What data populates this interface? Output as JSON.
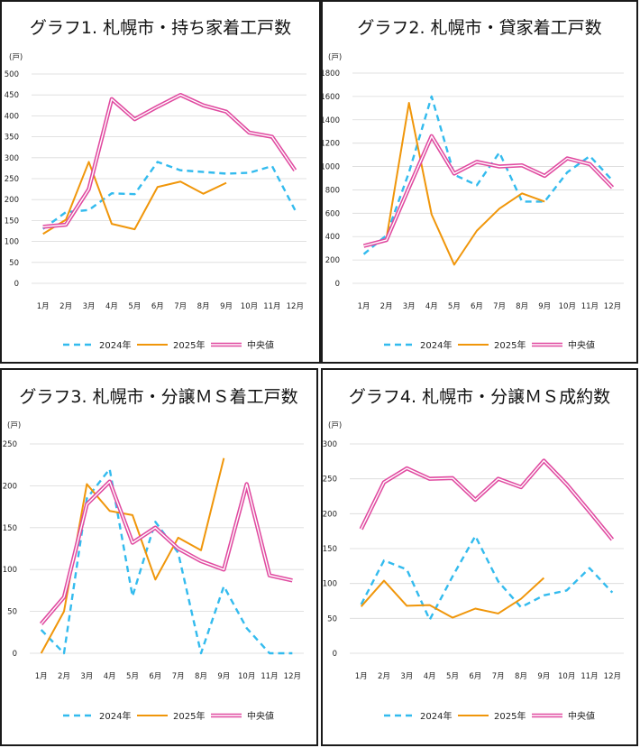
{
  "colors": {
    "y2024": "#33bbee",
    "y2025": "#f0960a",
    "median": "#e04aa0",
    "grid": "#d9d9d9"
  },
  "months": [
    "1月",
    "2月",
    "3月",
    "4月",
    "5月",
    "6月",
    "7月",
    "8月",
    "9月",
    "10月",
    "11月",
    "12月"
  ],
  "legend": {
    "y2024": "2024年",
    "y2025": "2025年",
    "median": "中央値"
  },
  "chart_data": [
    {
      "type": "line",
      "title": "グラフ1. 札幌市・持ち家着工戸数",
      "ylabel": "(戸)",
      "ylim": [
        0,
        500
      ],
      "yticks": [
        0,
        50,
        100,
        150,
        200,
        250,
        300,
        350,
        400,
        450,
        500
      ],
      "series": [
        {
          "name": "2024年",
          "values": [
            130,
            170,
            175,
            215,
            213,
            290,
            270,
            266,
            262,
            264,
            280,
            175
          ]
        },
        {
          "name": "2025年",
          "values": [
            118,
            152,
            290,
            142,
            129,
            230,
            243,
            214,
            240
          ]
        },
        {
          "name": "中央値",
          "values": [
            135,
            140,
            225,
            440,
            392,
            422,
            450,
            425,
            410,
            360,
            350,
            270
          ]
        }
      ]
    },
    {
      "type": "line",
      "title": "グラフ2. 札幌市・貸家着工戸数",
      "ylabel": "(戸)",
      "ylim": [
        0,
        1800
      ],
      "yticks": [
        0,
        200,
        400,
        600,
        800,
        1000,
        1200,
        1400,
        1600,
        1800
      ],
      "series": [
        {
          "name": "2024年",
          "values": [
            250,
            410,
            950,
            1600,
            930,
            840,
            1120,
            700,
            700,
            950,
            1090,
            880
          ]
        },
        {
          "name": "2025年",
          "values": [
            320,
            380,
            1545,
            590,
            160,
            450,
            640,
            770,
            700
          ]
        },
        {
          "name": "中央値",
          "values": [
            320,
            370,
            820,
            1260,
            940,
            1040,
            1000,
            1010,
            920,
            1070,
            1020,
            820
          ]
        }
      ]
    },
    {
      "type": "line",
      "title": "グラフ3. 札幌市・分譲ＭＳ着工戸数",
      "ylabel": "(戸)",
      "ylim": [
        0,
        250
      ],
      "yticks": [
        0,
        50,
        100,
        150,
        200,
        250
      ],
      "series": [
        {
          "name": "2024年",
          "values": [
            28,
            0,
            185,
            220,
            68,
            157,
            120,
            0,
            80,
            30,
            0,
            0
          ]
        },
        {
          "name": "2025年",
          "values": [
            0,
            50,
            202,
            170,
            165,
            88,
            138,
            123,
            233
          ]
        },
        {
          "name": "中央値",
          "values": [
            35,
            67,
            178,
            205,
            132,
            150,
            125,
            110,
            100,
            202,
            93,
            87
          ]
        }
      ]
    },
    {
      "type": "line",
      "title": "グラフ4. 札幌市・分譲ＭＳ成約数",
      "ylabel": "(戸)",
      "ylim": [
        0,
        300
      ],
      "yticks": [
        0,
        50,
        100,
        150,
        200,
        250,
        300
      ],
      "series": [
        {
          "name": "2024年",
          "values": [
            70,
            133,
            120,
            48,
            110,
            168,
            103,
            66,
            83,
            90,
            122,
            87
          ]
        },
        {
          "name": "2025年",
          "values": [
            67,
            104,
            68,
            69,
            51,
            64,
            57,
            78,
            108
          ]
        },
        {
          "name": "中央値",
          "values": [
            178,
            245,
            265,
            250,
            251,
            220,
            250,
            238,
            276,
            242,
            203,
            163
          ]
        }
      ]
    }
  ]
}
